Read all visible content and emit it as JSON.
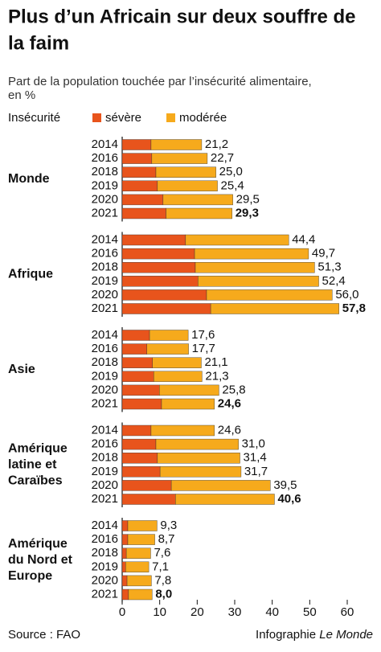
{
  "chart_data": {
    "type": "grouped-stacked-bar",
    "title": "Plus d’un Africain sur deux souffre de la faim",
    "subtitle": "Part de la population touchée par l’insécurité alimentaire, en %",
    "legend_title": "Insécurité",
    "groups": [
      {
        "name": [
          "Monde"
        ],
        "categories": [
          "2014",
          "2016",
          "2018",
          "2019",
          "2020",
          "2021"
        ]
      },
      {
        "name": [
          "Afrique"
        ],
        "categories": [
          "2014",
          "2016",
          "2018",
          "2019",
          "2020",
          "2021"
        ]
      },
      {
        "name": [
          "Asie"
        ],
        "categories": [
          "2014",
          "2016",
          "2018",
          "2019",
          "2020",
          "2021"
        ]
      },
      {
        "name": [
          "Amérique",
          "latine et",
          "Caraïbes"
        ],
        "categories": [
          "2014",
          "2016",
          "2018",
          "2019",
          "2020",
          "2021"
        ]
      },
      {
        "name": [
          "Amérique",
          "du Nord et",
          "Europe"
        ],
        "categories": [
          "2014",
          "2016",
          "2018",
          "2019",
          "2020",
          "2021"
        ]
      }
    ],
    "series": [
      {
        "name": "sévère",
        "color": "#e8541c",
        "values": [
          [
            7.7,
            7.9,
            9.0,
            9.4,
            10.9,
            11.7
          ],
          [
            16.9,
            19.3,
            19.5,
            20.2,
            22.5,
            23.6
          ],
          [
            7.3,
            6.6,
            8.1,
            8.4,
            9.9,
            10.5
          ],
          [
            7.7,
            9.0,
            9.4,
            10.1,
            13.1,
            14.2
          ],
          [
            1.5,
            1.5,
            1.1,
            0.9,
            1.3,
            1.7
          ]
        ]
      },
      {
        "name": "modérée",
        "color": "#f6aa1c",
        "values": [
          [
            13.5,
            14.8,
            16.0,
            16.0,
            18.6,
            17.6
          ],
          [
            27.5,
            30.4,
            31.8,
            32.2,
            33.5,
            34.2
          ],
          [
            10.3,
            11.1,
            13.0,
            12.9,
            15.9,
            14.1
          ],
          [
            16.9,
            22.0,
            22.0,
            21.6,
            26.4,
            26.4
          ],
          [
            7.8,
            7.2,
            6.5,
            6.2,
            6.5,
            6.3
          ]
        ]
      }
    ],
    "totals": [
      [
        21.2,
        22.7,
        25.0,
        25.4,
        29.5,
        29.3
      ],
      [
        44.4,
        49.7,
        51.3,
        52.4,
        56.0,
        57.8
      ],
      [
        17.6,
        17.7,
        21.1,
        21.3,
        25.8,
        24.6
      ],
      [
        24.6,
        31.0,
        31.4,
        31.7,
        39.5,
        40.6
      ],
      [
        9.3,
        8.7,
        7.6,
        7.1,
        7.8,
        8.0
      ]
    ],
    "totals_value_labels": [
      [
        "21,2",
        "22,7",
        "25,0",
        "25,4",
        "29,5",
        "29,3"
      ],
      [
        "44,4",
        "49,7",
        "51,3",
        "52,4",
        "56,0",
        "57,8"
      ],
      [
        "17,6",
        "17,7",
        "21,1",
        "21,3",
        "25,8",
        "24,6"
      ],
      [
        "24,6",
        "31,0",
        "31,4",
        "31,7",
        "39,5",
        "40,6"
      ],
      [
        "9,3",
        "8,7",
        "7,6",
        "7,1",
        "7,8",
        "8,0"
      ]
    ],
    "xlim": [
      0,
      60
    ],
    "xticks": [
      0,
      10,
      20,
      30,
      40,
      50,
      60
    ],
    "source": "Source : FAO",
    "credit": "Infographie",
    "credit_brand": "Le Monde"
  }
}
